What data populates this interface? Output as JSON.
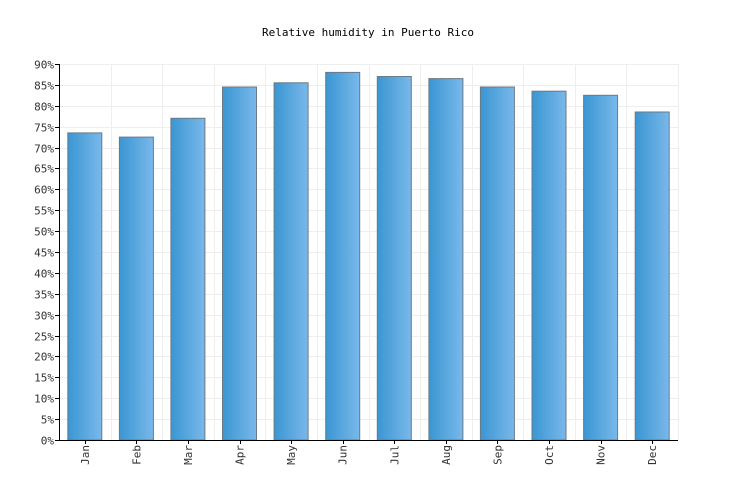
{
  "colors": {
    "bar_light": "#7ab8ea",
    "bar_dark": "#3a96d2",
    "bar_stroke": "#6a7a86",
    "grid": "#eeeeee",
    "axis": "#000000"
  },
  "chart_data": {
    "type": "bar",
    "title": "Relative humidity in Puerto Rico",
    "xlabel": "",
    "ylabel": "",
    "categories": [
      "Jan",
      "Feb",
      "Mar",
      "Apr",
      "May",
      "Jun",
      "Jul",
      "Aug",
      "Sep",
      "Oct",
      "Nov",
      "Dec"
    ],
    "values": [
      73.5,
      72.5,
      77,
      84.5,
      85.5,
      88,
      87,
      86.5,
      84.5,
      83.5,
      82.5,
      78.5
    ],
    "ylim": [
      0,
      90
    ],
    "yticks": [
      "0%",
      "5%",
      "10%",
      "15%",
      "20%",
      "25%",
      "30%",
      "35%",
      "40%",
      "45%",
      "50%",
      "55%",
      "60%",
      "65%",
      "70%",
      "75%",
      "80%",
      "85%",
      "90%"
    ],
    "ytick_values": [
      0,
      5,
      10,
      15,
      20,
      25,
      30,
      35,
      40,
      45,
      50,
      55,
      60,
      65,
      70,
      75,
      80,
      85,
      90
    ],
    "grid": true
  }
}
